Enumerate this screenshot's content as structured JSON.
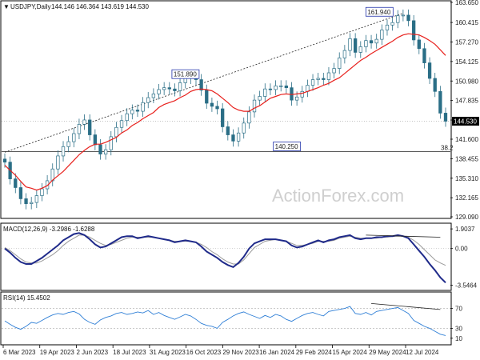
{
  "chart_data": [
    {
      "type": "candlestick",
      "header": {
        "symbol": "USDJPY,Daily",
        "open": "144.146",
        "high": "146.364",
        "low": "143.619",
        "close": "144.530"
      },
      "x_ticks": [
        "6 Mar 2023",
        "19 Apr 2023",
        "2 Jun 2023",
        "18 Jul 2023",
        "31 Aug 2023",
        "16 Oct 2023",
        "29 Nov 2023",
        "16 Jan 2024",
        "29 Feb 2024",
        "15 Apr 2024",
        "29 May 2024",
        "12 Jul 2024"
      ],
      "y_ticks": [
        "163.650",
        "160.415",
        "157.270",
        "154.125",
        "150.980",
        "147.835",
        "144.690",
        "141.600",
        "138.455",
        "135.310",
        "132.165",
        "129.090"
      ],
      "ylim": [
        129.09,
        163.65
      ],
      "current_price_label": "144.530",
      "fib_label": "38.2",
      "fib_level": 139.6,
      "annotations": [
        {
          "text": "161.940",
          "x_index": 8.5,
          "value": 161.94
        },
        {
          "text": "151.890",
          "x_index": 4.1,
          "value": 151.89
        },
        {
          "text": "140.250",
          "x_index": 6.4,
          "value": 140.25
        }
      ],
      "close_series": [
        137.9,
        135.2,
        133.8,
        132.0,
        131.2,
        131.4,
        132.5,
        133.6,
        134.9,
        136.8,
        138.9,
        140.4,
        141.2,
        142.5,
        144.0,
        144.7,
        142.3,
        140.7,
        139.2,
        139.9,
        142.0,
        143.5,
        144.6,
        145.7,
        146.3,
        146.1,
        147.5,
        148.3,
        148.9,
        149.6,
        149.9,
        149.7,
        149.4,
        150.7,
        151.4,
        151.6,
        151.2,
        149.5,
        147.4,
        146.9,
        146.5,
        143.6,
        142.3,
        141.3,
        142.6,
        144.2,
        146.0,
        147.9,
        148.5,
        149.7,
        149.6,
        150.2,
        150.2,
        149.9,
        147.9,
        148.4,
        149.3,
        150.3,
        151.2,
        151.4,
        151.2,
        152.3,
        153.0,
        154.7,
        155.9,
        157.8,
        155.6,
        156.5,
        157.5,
        157.1,
        157.7,
        159.2,
        160.0,
        160.4,
        161.5,
        161.6,
        160.7,
        157.6,
        156.2,
        153.9,
        151.4,
        149.3,
        145.8,
        144.5
      ],
      "sma_series": [
        137.4,
        136.6,
        135.8,
        134.8,
        133.9,
        133.7,
        133.4,
        133.7,
        134.1,
        135.0,
        135.7,
        136.4,
        137.3,
        138.2,
        139.1,
        139.8,
        140.4,
        140.8,
        140.8,
        141.1,
        141.5,
        141.9,
        142.6,
        143.1,
        143.8,
        144.3,
        144.9,
        145.4,
        145.9,
        146.7,
        147.2,
        147.5,
        147.8,
        148.3,
        148.7,
        149.3,
        149.6,
        149.7,
        149.6,
        149.4,
        148.9,
        148.2,
        147.5,
        146.7,
        146.3,
        146.1,
        146.1,
        146.6,
        147.0,
        147.6,
        148.2,
        148.5,
        148.8,
        148.9,
        148.8,
        148.9,
        149.0,
        149.3,
        149.6,
        149.9,
        150.3,
        150.6,
        151.1,
        151.5,
        152.2,
        152.9,
        153.6,
        154.3,
        154.8,
        155.4,
        155.9,
        156.4,
        156.9,
        157.4,
        158.0,
        158.4,
        158.6,
        158.5,
        158.4,
        158.0,
        157.5,
        156.9,
        156.0,
        155.1
      ],
      "sma_color": "#e8211d",
      "candle_color": "#2a6e86",
      "trendline": {
        "from_index": 0,
        "from_value": 139.5,
        "to_index": 75,
        "to_value": 161.9
      }
    },
    {
      "type": "line",
      "label": "MACD(12,26,9) -3.2986 -1.6288",
      "y_ticks": [
        "1.9037",
        "0.00",
        "-3.5464"
      ],
      "ylim": [
        -3.9,
        2.3
      ],
      "macd_series": [
        0.0,
        -0.4,
        -0.9,
        -1.3,
        -1.5,
        -1.5,
        -1.2,
        -0.9,
        -0.5,
        -0.1,
        0.3,
        0.8,
        1.1,
        1.4,
        1.5,
        1.3,
        0.9,
        0.4,
        0.1,
        0.2,
        0.5,
        0.8,
        1.1,
        1.2,
        1.2,
        1.0,
        1.1,
        1.2,
        1.1,
        1.0,
        0.9,
        0.8,
        0.6,
        0.7,
        0.8,
        0.7,
        0.6,
        0.2,
        -0.3,
        -0.6,
        -0.9,
        -1.3,
        -1.6,
        -1.8,
        -1.4,
        -0.8,
        0.0,
        0.5,
        0.7,
        0.9,
        0.9,
        0.9,
        0.8,
        0.7,
        0.3,
        0.1,
        0.2,
        0.4,
        0.6,
        0.8,
        0.6,
        0.8,
        0.9,
        1.1,
        1.2,
        1.3,
        1.0,
        0.9,
        1.0,
        1.0,
        1.1,
        1.1,
        1.2,
        1.2,
        1.3,
        1.2,
        1.0,
        0.4,
        -0.2,
        -0.8,
        -1.5,
        -2.1,
        -2.8,
        -3.3
      ],
      "signal_series": [
        0.1,
        -0.2,
        -0.6,
        -1.0,
        -1.3,
        -1.4,
        -1.4,
        -1.2,
        -0.9,
        -0.6,
        -0.2,
        0.3,
        0.7,
        1.0,
        1.3,
        1.3,
        1.1,
        0.8,
        0.5,
        0.3,
        0.4,
        0.6,
        0.8,
        1.0,
        1.1,
        1.1,
        1.1,
        1.1,
        1.1,
        1.0,
        0.9,
        0.8,
        0.7,
        0.7,
        0.7,
        0.7,
        0.6,
        0.4,
        0.1,
        -0.3,
        -0.6,
        -1.0,
        -1.3,
        -1.5,
        -1.5,
        -1.1,
        -0.5,
        0.1,
        0.4,
        0.7,
        0.8,
        0.9,
        0.8,
        0.7,
        0.5,
        0.3,
        0.3,
        0.4,
        0.5,
        0.7,
        0.7,
        0.7,
        0.8,
        1.0,
        1.1,
        1.2,
        1.1,
        1.0,
        1.0,
        1.0,
        1.0,
        1.1,
        1.1,
        1.2,
        1.2,
        1.2,
        1.1,
        0.8,
        0.4,
        -0.1,
        -0.6,
        -1.1,
        -1.4,
        -1.63
      ],
      "trendline": {
        "from_index": 68,
        "from_value": 1.3,
        "to_index": 82,
        "to_value": 1.1
      },
      "line_color": "#1f2a8a",
      "signal_color": "#9a9a9a"
    },
    {
      "type": "line",
      "label": "RSI(14) 15.4502",
      "y_ticks": [
        "70",
        "30",
        "10"
      ],
      "ylim": [
        0,
        100
      ],
      "levels": [
        70,
        30
      ],
      "rsi_series": [
        45,
        38,
        32,
        28,
        34,
        42,
        40,
        46,
        52,
        57,
        60,
        58,
        62,
        64,
        59,
        48,
        42,
        38,
        47,
        52,
        55,
        60,
        62,
        58,
        60,
        63,
        61,
        66,
        58,
        62,
        56,
        52,
        48,
        53,
        58,
        55,
        48,
        40,
        36,
        34,
        30,
        42,
        48,
        55,
        60,
        63,
        58,
        54,
        50,
        56,
        52,
        58,
        55,
        48,
        44,
        50,
        56,
        60,
        62,
        58,
        55,
        64,
        66,
        68,
        70,
        74,
        60,
        58,
        62,
        57,
        64,
        66,
        68,
        70,
        72,
        66,
        60,
        46,
        40,
        34,
        30,
        24,
        18,
        15.5
      ],
      "trendline": {
        "from_index": 69,
        "from_value": 80,
        "to_index": 82,
        "to_value": 68
      },
      "line_color": "#2f7fd6"
    }
  ],
  "watermark": "ActionForex.com"
}
